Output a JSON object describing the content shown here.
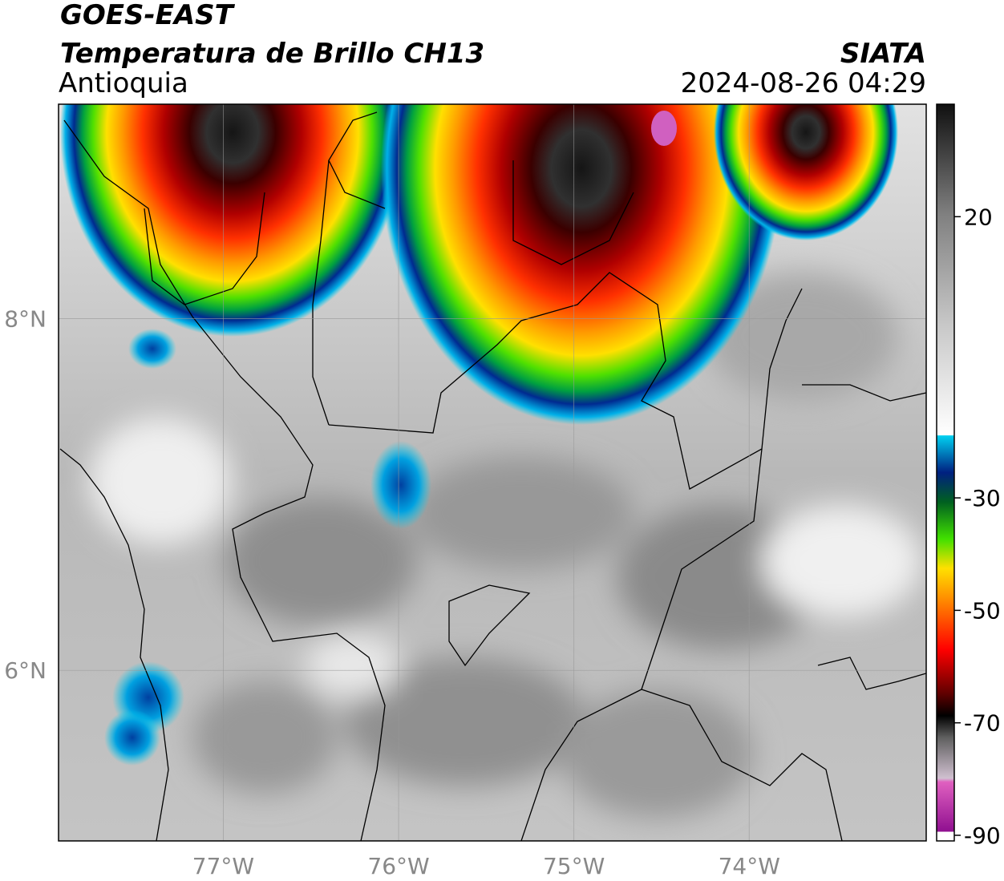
{
  "map": {
    "title": "GOES-EAST",
    "subtitle": "Temperatura de Brillo CH13",
    "region": "Antioquia",
    "source": "SIATA",
    "datetime": "2024-08-26 04:29",
    "xlim": [
      -77.94,
      -72.99
    ],
    "ylim": [
      5.03,
      9.22
    ],
    "xticks": [
      {
        "value": -77,
        "label": "77°W"
      },
      {
        "value": -76,
        "label": "76°W"
      },
      {
        "value": -75,
        "label": "75°W"
      },
      {
        "value": -74,
        "label": "74°W"
      }
    ],
    "yticks": [
      {
        "value": 8,
        "label": "8°N"
      },
      {
        "value": 6,
        "label": "6°N"
      }
    ],
    "colorbar": {
      "lim": [
        -91,
        40
      ],
      "ticks": [
        20,
        -30,
        -50,
        -70,
        -90
      ]
    }
  }
}
